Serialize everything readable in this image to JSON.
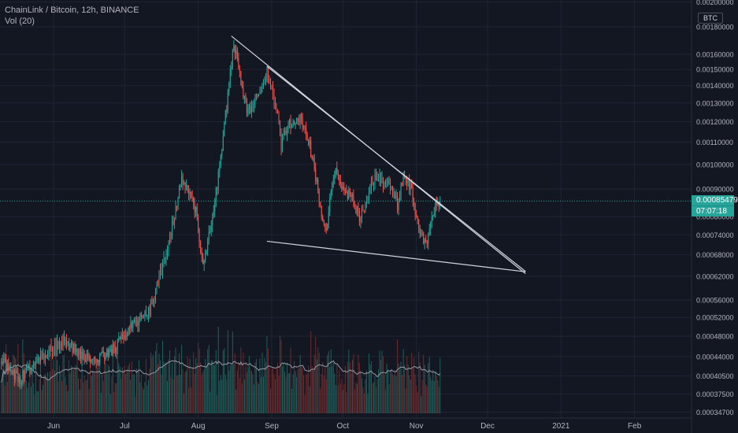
{
  "header": {
    "symbol_line": "ChainLink / Bitcoin, 12h, BINANCE",
    "indicator_line": "Vol (20)"
  },
  "currency_badge": "BTC",
  "last_price": {
    "value_label": "0.00085479",
    "timer_label": "07:07:18",
    "value": 0.00085479
  },
  "colors": {
    "background": "#131722",
    "grid": "#1f2433",
    "up": "#26a69a",
    "down": "#ef5350",
    "volume_up": "#1f5f5a",
    "volume_down": "#6b2b2e",
    "volume_ma": "#9598a1",
    "trendline": "#d1d4dc",
    "axis_text": "#b2b5be",
    "price_tag": "#26a69a"
  },
  "chart_data": {
    "type": "candlestick",
    "title": "ChainLink / Bitcoin, 12h, BINANCE",
    "interval": "12h",
    "x_axis": {
      "type": "date",
      "tick_labels": [
        "Jun",
        "Jul",
        "Aug",
        "Sep",
        "Oct",
        "Nov",
        "Dec",
        "2021",
        "Feb"
      ],
      "tick_dates": [
        "2020-06-01",
        "2020-07-01",
        "2020-08-01",
        "2020-09-01",
        "2020-10-01",
        "2020-11-01",
        "2020-12-01",
        "2021-01-01",
        "2021-02-01"
      ],
      "range": [
        "2020-05-10",
        "2021-02-22"
      ]
    },
    "y_axis": {
      "scale": "log",
      "tick_labels": [
        "0.00200000",
        "0.00180000",
        "0.00160000",
        "0.00150000",
        "0.00140000",
        "0.00130000",
        "0.00120000",
        "0.00110000",
        "0.00100000",
        "0.00090000",
        "0.00080000",
        "0.00074000",
        "0.00068000",
        "0.00062000",
        "0.00056000",
        "0.00052000",
        "0.00048000",
        "0.00044000",
        "0.00040500",
        "0.00037500",
        "0.00034700"
      ],
      "tick_values": [
        0.002,
        0.0018,
        0.0016,
        0.0015,
        0.0014,
        0.0013,
        0.0012,
        0.0011,
        0.001,
        0.0009,
        0.0008,
        0.00074,
        0.00068,
        0.00062,
        0.00056,
        0.00052,
        0.00048,
        0.00044,
        0.000405,
        0.000375,
        0.000347
      ],
      "range": [
        0.000335,
        0.00202
      ]
    },
    "grid": true,
    "legend": "top-left",
    "last_price": 0.00085479,
    "price_anchors": [
      {
        "date": "2020-05-10",
        "price": 0.00043
      },
      {
        "date": "2020-05-18",
        "price": 0.0004
      },
      {
        "date": "2020-06-01",
        "price": 0.00046
      },
      {
        "date": "2020-06-05",
        "price": 0.00047
      },
      {
        "date": "2020-06-18",
        "price": 0.00043
      },
      {
        "date": "2020-06-28",
        "price": 0.00046
      },
      {
        "date": "2020-07-05",
        "price": 0.00051
      },
      {
        "date": "2020-07-11",
        "price": 0.00053
      },
      {
        "date": "2020-07-14",
        "price": 0.00058
      },
      {
        "date": "2020-07-20",
        "price": 0.00073
      },
      {
        "date": "2020-07-25",
        "price": 0.00093
      },
      {
        "date": "2020-07-27",
        "price": 0.0009
      },
      {
        "date": "2020-07-31",
        "price": 0.00082
      },
      {
        "date": "2020-08-03",
        "price": 0.00065
      },
      {
        "date": "2020-08-06",
        "price": 0.00075
      },
      {
        "date": "2020-08-09",
        "price": 0.00092
      },
      {
        "date": "2020-08-11",
        "price": 0.00108
      },
      {
        "date": "2020-08-13",
        "price": 0.00128
      },
      {
        "date": "2020-08-16",
        "price": 0.00168
      },
      {
        "date": "2020-08-19",
        "price": 0.00142
      },
      {
        "date": "2020-08-22",
        "price": 0.00125
      },
      {
        "date": "2020-08-26",
        "price": 0.00135
      },
      {
        "date": "2020-08-30",
        "price": 0.00148
      },
      {
        "date": "2020-09-03",
        "price": 0.00128
      },
      {
        "date": "2020-09-05",
        "price": 0.00108
      },
      {
        "date": "2020-09-08",
        "price": 0.00118
      },
      {
        "date": "2020-09-13",
        "price": 0.00122
      },
      {
        "date": "2020-09-17",
        "price": 0.00108
      },
      {
        "date": "2020-09-19",
        "price": 0.00098
      },
      {
        "date": "2020-09-22",
        "price": 0.00082
      },
      {
        "date": "2020-09-24",
        "price": 0.00076
      },
      {
        "date": "2020-09-26",
        "price": 0.00088
      },
      {
        "date": "2020-09-28",
        "price": 0.00098
      },
      {
        "date": "2020-10-01",
        "price": 0.00091
      },
      {
        "date": "2020-10-05",
        "price": 0.00086
      },
      {
        "date": "2020-10-08",
        "price": 0.0008
      },
      {
        "date": "2020-10-11",
        "price": 0.00086
      },
      {
        "date": "2020-10-15",
        "price": 0.00096
      },
      {
        "date": "2020-10-18",
        "price": 0.00092
      },
      {
        "date": "2020-10-22",
        "price": 0.0009
      },
      {
        "date": "2020-10-24",
        "price": 0.00084
      },
      {
        "date": "2020-10-27",
        "price": 0.00097
      },
      {
        "date": "2020-10-30",
        "price": 0.00089
      },
      {
        "date": "2020-11-02",
        "price": 0.00077
      },
      {
        "date": "2020-11-05",
        "price": 0.0007
      },
      {
        "date": "2020-11-07",
        "price": 0.00078
      },
      {
        "date": "2020-11-09",
        "price": 0.00084
      },
      {
        "date": "2020-11-11",
        "price": 0.000855
      }
    ],
    "trendlines": [
      {
        "name": "upper",
        "start": {
          "date": "2020-08-15",
          "price": 0.00173
        },
        "end": {
          "date": "2020-12-17",
          "price": 0.000627
        }
      },
      {
        "name": "upper-parallel",
        "start": {
          "date": "2020-08-30",
          "price": 0.00152
        },
        "end": {
          "date": "2020-12-17",
          "price": 0.000633
        }
      },
      {
        "name": "lower",
        "start": {
          "date": "2020-08-30",
          "price": 0.00072
        },
        "end": {
          "date": "2020-12-17",
          "price": 0.000632
        }
      }
    ],
    "volume": {
      "indicator": "Vol (20)",
      "ma_length": 20
    }
  }
}
